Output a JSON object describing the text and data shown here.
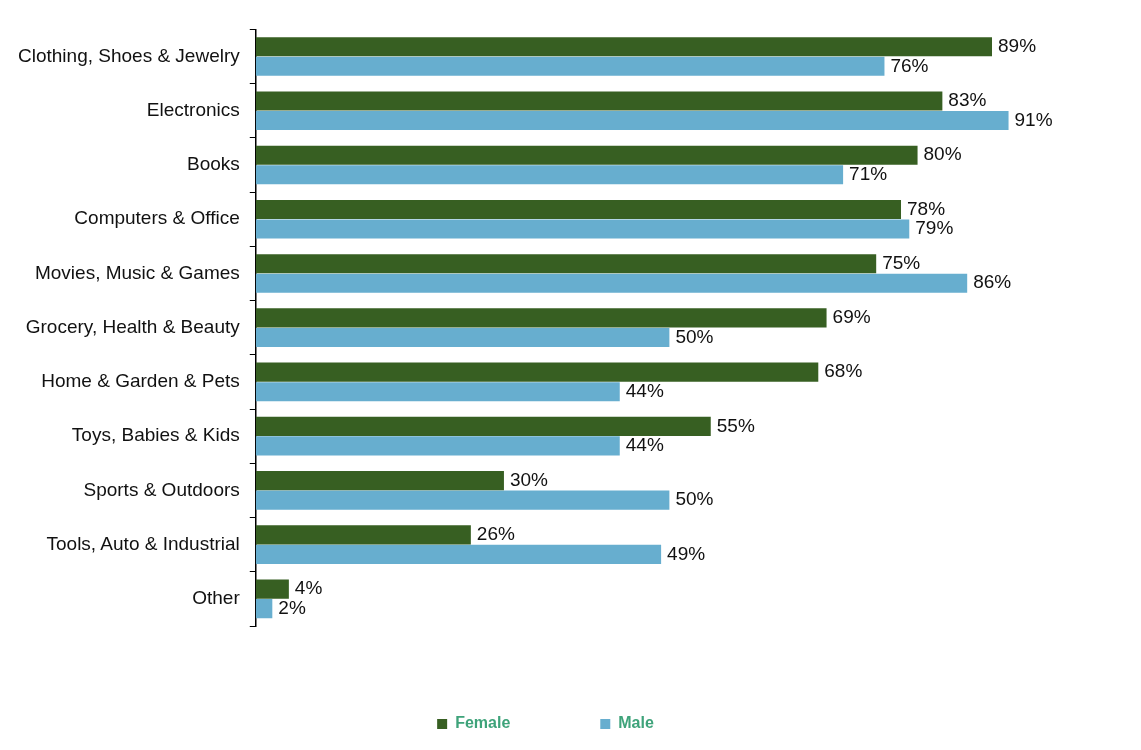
{
  "chart_data": {
    "type": "bar",
    "orientation": "horizontal",
    "categories": [
      "Clothing, Shoes & Jewelry",
      "Electronics",
      "Books",
      "Computers & Office",
      "Movies, Music & Games",
      "Grocery, Health & Beauty",
      "Home & Garden & Pets",
      "Toys, Babies & Kids",
      "Sports & Outdoors",
      "Tools, Auto & Industrial",
      "Other"
    ],
    "series": [
      {
        "name": "Female",
        "color": "#375f22",
        "values": [
          89,
          83,
          80,
          78,
          75,
          69,
          68,
          55,
          30,
          26,
          4
        ],
        "value_labels": [
          "89%",
          "83%",
          "80%",
          "78%",
          "75%",
          "69%",
          "68%",
          "55%",
          "30%",
          "26%",
          "4%"
        ]
      },
      {
        "name": "Male",
        "color": "#67aecf",
        "values": [
          76,
          91,
          71,
          79,
          86,
          50,
          44,
          44,
          50,
          49,
          2
        ],
        "value_labels": [
          "76%",
          "91%",
          "71%",
          "79%",
          "86%",
          "50%",
          "44%",
          "44%",
          "50%",
          "49%",
          "2%"
        ]
      }
    ],
    "legend": "bottom",
    "grid": false
  }
}
